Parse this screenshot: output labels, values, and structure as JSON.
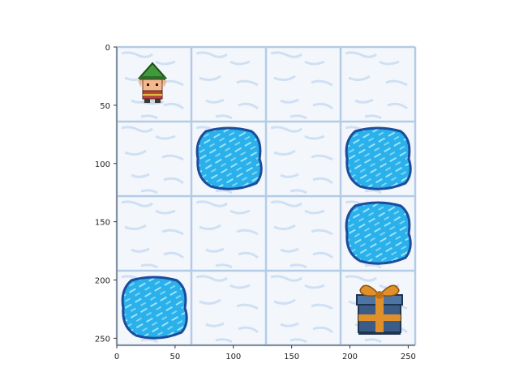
{
  "game": {
    "grid": {
      "rows": 4,
      "cols": 4,
      "map": [
        [
          "S",
          "F",
          "F",
          "F"
        ],
        [
          "F",
          "H",
          "F",
          "H"
        ],
        [
          "F",
          "F",
          "F",
          "H"
        ],
        [
          "H",
          "F",
          "F",
          "G"
        ]
      ]
    },
    "agent": {
      "row": 0,
      "col": 0
    },
    "axes": {
      "x_ticks": [
        "0",
        "50",
        "100",
        "150",
        "200",
        "250"
      ],
      "y_ticks": [
        "0",
        "50",
        "100",
        "150",
        "200",
        "250"
      ]
    },
    "colors": {
      "ice": "#f3f7fc",
      "ice_streak": "#cfe0f4",
      "grid_line": "#b4cbe6",
      "hole_outer": "#1c4c9c",
      "hole_fill": "#2ab0ea",
      "hole_streak": "#9be4fa",
      "gift_box": "#3a5c86",
      "gift_ribbon": "#e0902a",
      "elf_hat": "#3f9b3a",
      "elf_skin": "#f2b88e",
      "elf_tunic": "#b8473a"
    }
  }
}
